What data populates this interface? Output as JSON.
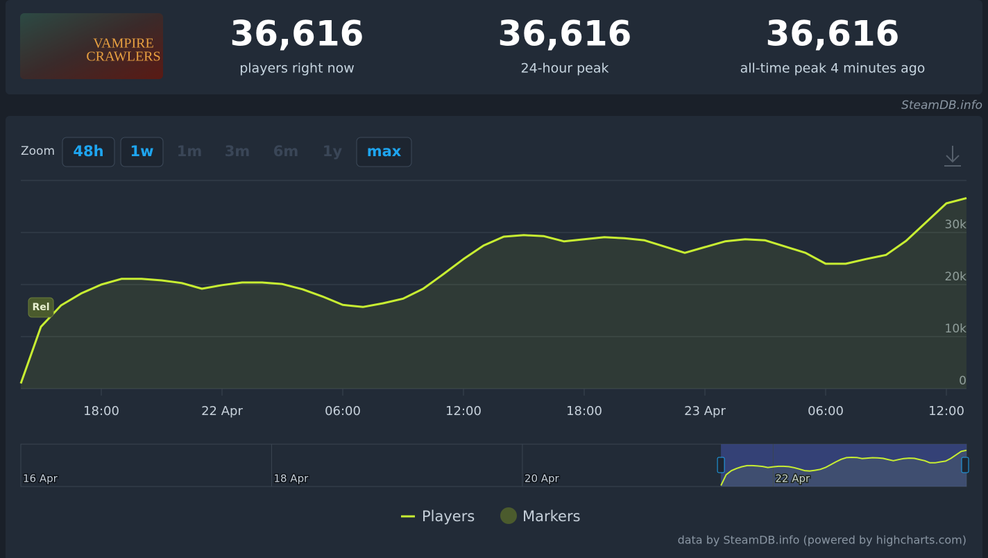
{
  "header": {
    "image_title_lines": [
      "VAMPIRE",
      "CRAWLERS"
    ],
    "stats": [
      {
        "value": "36,616",
        "label": "players right now"
      },
      {
        "value": "36,616",
        "label": "24-hour peak"
      },
      {
        "value": "36,616",
        "label": "all-time peak 4 minutes ago"
      }
    ],
    "credit": "SteamDB.info"
  },
  "zoom": {
    "label": "Zoom",
    "buttons": [
      {
        "text": "48h",
        "active": true
      },
      {
        "text": "1w",
        "active": true
      },
      {
        "text": "1m",
        "active": false
      },
      {
        "text": "3m",
        "active": false
      },
      {
        "text": "6m",
        "active": false
      },
      {
        "text": "1y",
        "active": false
      },
      {
        "text": "max",
        "active": true
      }
    ]
  },
  "chart_data": {
    "type": "line",
    "x": [
      "21 Apr 14:00",
      "21 Apr 15:00",
      "21 Apr 16:00",
      "21 Apr 17:00",
      "21 Apr 18:00",
      "21 Apr 19:00",
      "21 Apr 20:00",
      "21 Apr 21:00",
      "21 Apr 22:00",
      "21 Apr 23:00",
      "22 Apr 00:00",
      "22 Apr 01:00",
      "22 Apr 02:00",
      "22 Apr 03:00",
      "22 Apr 04:00",
      "22 Apr 05:00",
      "22 Apr 06:00",
      "22 Apr 07:00",
      "22 Apr 08:00",
      "22 Apr 09:00",
      "22 Apr 10:00",
      "22 Apr 11:00",
      "22 Apr 12:00",
      "22 Apr 13:00",
      "22 Apr 14:00",
      "22 Apr 15:00",
      "22 Apr 16:00",
      "22 Apr 17:00",
      "22 Apr 18:00",
      "22 Apr 19:00",
      "22 Apr 20:00",
      "22 Apr 21:00",
      "22 Apr 22:00",
      "22 Apr 23:00",
      "23 Apr 00:00",
      "23 Apr 01:00",
      "23 Apr 02:00",
      "23 Apr 03:00",
      "23 Apr 04:00",
      "23 Apr 05:00",
      "23 Apr 06:00",
      "23 Apr 07:00",
      "23 Apr 08:00",
      "23 Apr 09:00",
      "23 Apr 10:00",
      "23 Apr 11:00",
      "23 Apr 12:00",
      "23 Apr 13:00"
    ],
    "series": [
      {
        "name": "Players",
        "color": "#c8ee32",
        "values": [
          1000,
          11900,
          16000,
          18300,
          20000,
          21100,
          21100,
          20800,
          20300,
          19200,
          19900,
          20400,
          20400,
          20100,
          19100,
          17700,
          16100,
          15700,
          16400,
          17300,
          19200,
          22000,
          24900,
          27500,
          29200,
          29500,
          29300,
          28300,
          28700,
          29100,
          28900,
          28500,
          27300,
          26100,
          27200,
          28300,
          28700,
          28500,
          27300,
          26100,
          24000,
          24000,
          24900,
          25700,
          28400,
          32000,
          35600,
          36616
        ]
      }
    ],
    "xlim": [
      "21 Apr 14:00",
      "23 Apr 13:00"
    ],
    "xticks": [
      {
        "value": "21 Apr 18:00",
        "label": "18:00"
      },
      {
        "value": "22 Apr 00:00",
        "label": "22 Apr"
      },
      {
        "value": "22 Apr 06:00",
        "label": "06:00"
      },
      {
        "value": "22 Apr 12:00",
        "label": "12:00"
      },
      {
        "value": "22 Apr 18:00",
        "label": "18:00"
      },
      {
        "value": "23 Apr 00:00",
        "label": "23 Apr"
      },
      {
        "value": "23 Apr 06:00",
        "label": "06:00"
      },
      {
        "value": "23 Apr 12:00",
        "label": "12:00"
      }
    ],
    "ylim": [
      0,
      40000
    ],
    "yticks": [
      0,
      {
        "value": 10000,
        "label": "10k"
      },
      {
        "value": 20000,
        "label": "20k"
      },
      {
        "value": 30000,
        "label": "30k"
      }
    ],
    "grid": true,
    "markers": [
      {
        "x": "21 Apr 15:00",
        "label": "Rel"
      }
    ],
    "marker_series": {
      "name": "Markers",
      "color": "#4b5b2d"
    },
    "navigator": {
      "xlim": [
        "16 Apr 00:00",
        "23 Apr 13:00"
      ],
      "xticks": [
        {
          "value": "16 Apr 00:00",
          "label": "16 Apr"
        },
        {
          "value": "18 Apr 00:00",
          "label": "18 Apr"
        },
        {
          "value": "20 Apr 00:00",
          "label": "20 Apr"
        },
        {
          "value": "22 Apr 00:00",
          "label": "22 Apr"
        }
      ]
    }
  },
  "footer": "data by SteamDB.info (powered by highcharts.com)"
}
